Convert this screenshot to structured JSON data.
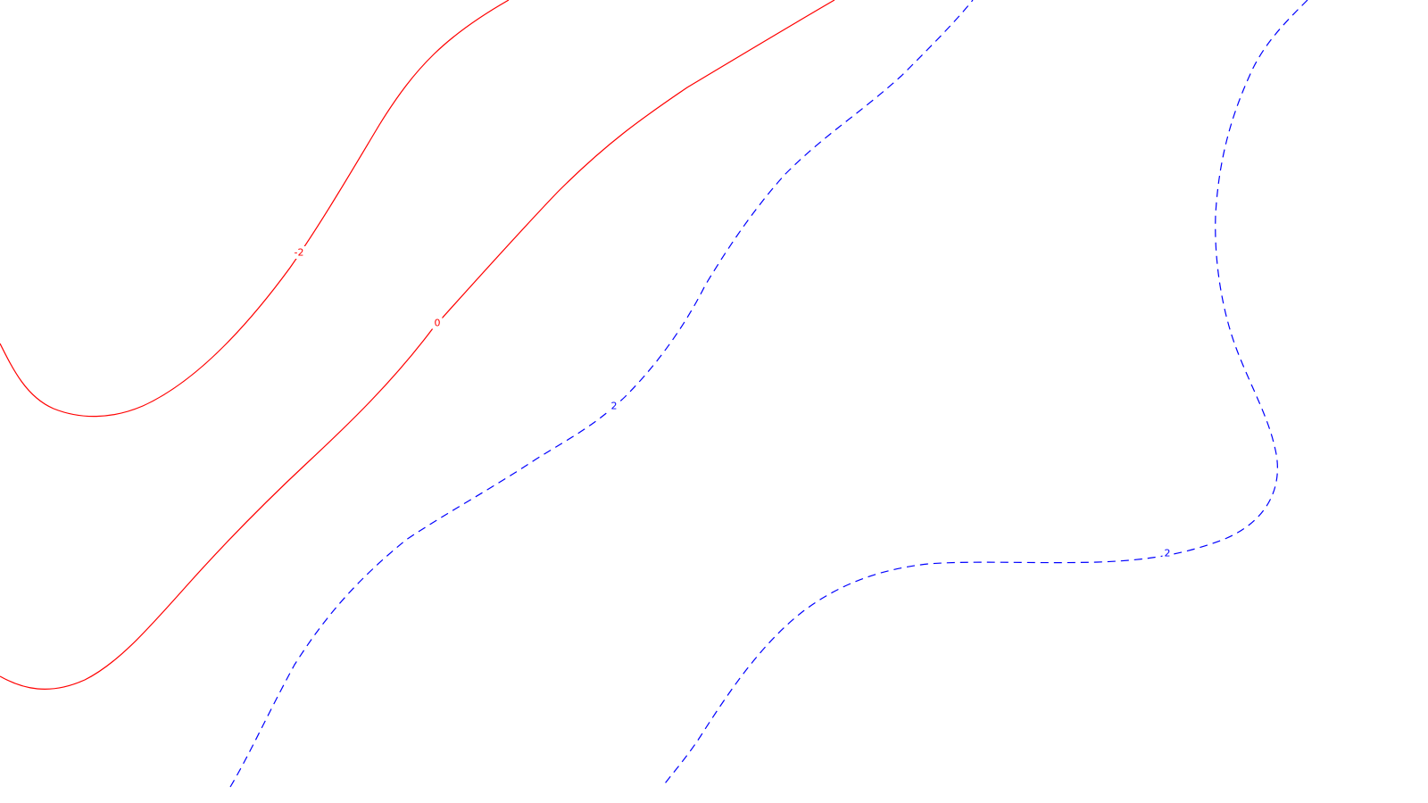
{
  "chart_data": {
    "type": "contour",
    "title": "",
    "xlabel": "",
    "ylabel": "",
    "grid": false,
    "legend": "none",
    "colors": {
      "background": "#ffffff",
      "negative_and_zero": "#ff0000",
      "positive": "#0000ff"
    },
    "contours": [
      {
        "id": "neg2",
        "level": -2,
        "label": "-2",
        "color": "#ff0000",
        "style": "solid"
      },
      {
        "id": "zero",
        "level": 0,
        "label": "0",
        "color": "#ff0000",
        "style": "solid"
      },
      {
        "id": "pos2a",
        "level": 2,
        "label": "2",
        "color": "#0000ff",
        "style": "dashed"
      },
      {
        "id": "pos2b",
        "level": 2,
        "label": "2",
        "color": "#0000ff",
        "style": "dashed"
      }
    ]
  }
}
